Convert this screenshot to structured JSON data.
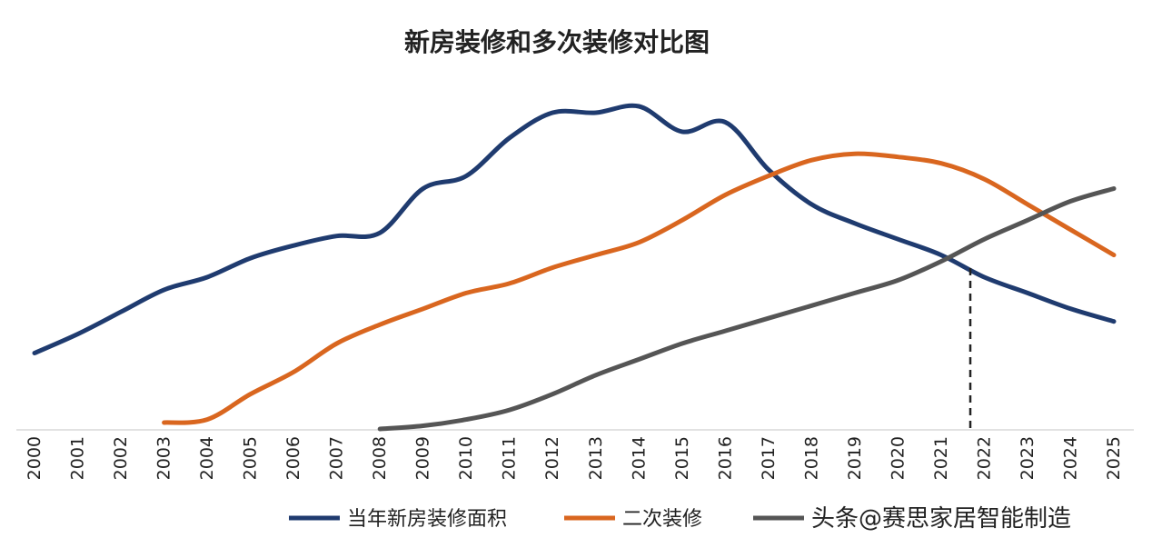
{
  "chart_data": {
    "type": "line",
    "title": "新房装修和多次装修对比图",
    "xlabel": "",
    "ylabel": "",
    "y_axis_shown": false,
    "grid": false,
    "legend_position": "bottom",
    "x": [
      "2000",
      "2001",
      "2002",
      "2003",
      "2004",
      "2005",
      "2006",
      "2007",
      "2008",
      "2009",
      "2010",
      "2011",
      "2012",
      "2013",
      "2014",
      "2015",
      "2016",
      "2017",
      "2018",
      "2019",
      "2020",
      "2021",
      "2022",
      "2023",
      "2024",
      "2025"
    ],
    "ylim": [
      0,
      100
    ],
    "annotations": [
      {
        "type": "dashed-vertical",
        "x": 2021.6
      }
    ],
    "series": [
      {
        "name": "当年新房装修面积",
        "color": "#1f3b6f",
        "values": [
          24,
          30,
          37,
          44,
          48,
          54,
          58,
          61,
          62,
          76,
          80,
          92,
          100,
          100,
          102,
          94,
          97,
          82,
          71,
          65,
          60,
          55,
          48,
          43,
          38,
          34
        ]
      },
      {
        "name": "二次装修",
        "color": "#d9661f",
        "values": [
          null,
          null,
          null,
          2,
          3,
          11,
          18,
          27,
          33,
          38,
          43,
          46,
          51,
          55,
          59,
          66,
          74,
          80,
          85,
          87,
          86,
          84,
          79,
          71,
          63,
          55
        ]
      },
      {
        "name": "",
        "color": "#555555",
        "values": [
          null,
          null,
          null,
          null,
          null,
          null,
          null,
          null,
          0,
          1,
          3,
          6,
          11,
          17,
          22,
          27,
          31,
          35,
          39,
          43,
          47,
          53,
          60,
          66,
          72,
          76
        ]
      }
    ]
  },
  "watermark": {
    "text": "头条@赛思家居智能制造"
  }
}
